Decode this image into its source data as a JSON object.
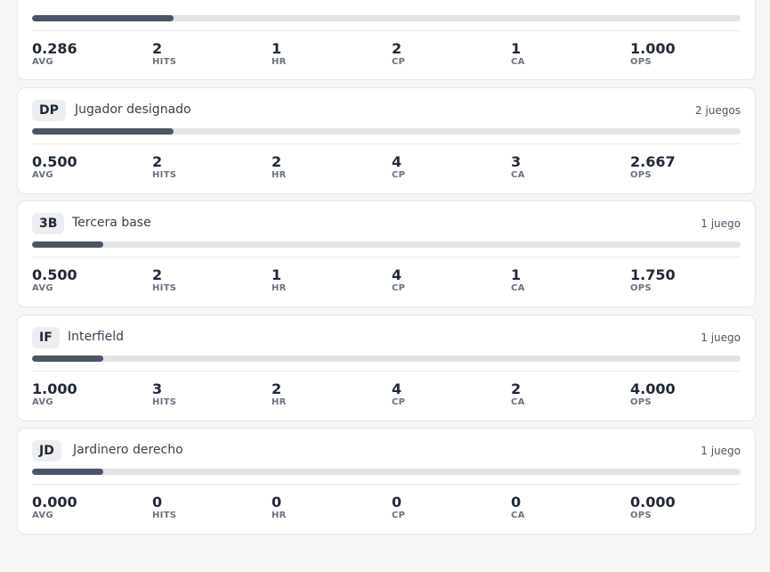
{
  "cards": [
    {
      "position_code": "",
      "position_name": "",
      "games": "",
      "bar_fraction": 0.2,
      "stats": [
        {
          "value": "0.286",
          "label": "AVG"
        },
        {
          "value": "2",
          "label": "HITS"
        },
        {
          "value": "1",
          "label": "HR"
        },
        {
          "value": "2",
          "label": "CP"
        },
        {
          "value": "1",
          "label": "CA"
        },
        {
          "value": "1.000",
          "label": "OPS"
        }
      ]
    },
    {
      "position_code": "DP",
      "position_name": "Jugador designado",
      "games": "2 juegos",
      "bar_fraction": 0.2,
      "stats": [
        {
          "value": "0.500",
          "label": "AVG"
        },
        {
          "value": "2",
          "label": "HITS"
        },
        {
          "value": "2",
          "label": "HR"
        },
        {
          "value": "4",
          "label": "CP"
        },
        {
          "value": "3",
          "label": "CA"
        },
        {
          "value": "2.667",
          "label": "OPS"
        }
      ]
    },
    {
      "position_code": "3B",
      "position_name": "Tercera base",
      "games": "1 juego",
      "bar_fraction": 0.1,
      "stats": [
        {
          "value": "0.500",
          "label": "AVG"
        },
        {
          "value": "2",
          "label": "HITS"
        },
        {
          "value": "1",
          "label": "HR"
        },
        {
          "value": "4",
          "label": "CP"
        },
        {
          "value": "1",
          "label": "CA"
        },
        {
          "value": "1.750",
          "label": "OPS"
        }
      ]
    },
    {
      "position_code": "IF",
      "position_name": "Interfield",
      "games": "1 juego",
      "bar_fraction": 0.1,
      "stats": [
        {
          "value": "1.000",
          "label": "AVG"
        },
        {
          "value": "3",
          "label": "HITS"
        },
        {
          "value": "2",
          "label": "HR"
        },
        {
          "value": "4",
          "label": "CP"
        },
        {
          "value": "2",
          "label": "CA"
        },
        {
          "value": "4.000",
          "label": "OPS"
        }
      ]
    },
    {
      "position_code": "JD",
      "position_name": "Jardinero derecho",
      "games": "1 juego",
      "bar_fraction": 0.1,
      "stats": [
        {
          "value": "0.000",
          "label": "AVG"
        },
        {
          "value": "0",
          "label": "HITS"
        },
        {
          "value": "0",
          "label": "HR"
        },
        {
          "value": "0",
          "label": "CP"
        },
        {
          "value": "0",
          "label": "CA"
        },
        {
          "value": "0.000",
          "label": "OPS"
        }
      ]
    }
  ]
}
